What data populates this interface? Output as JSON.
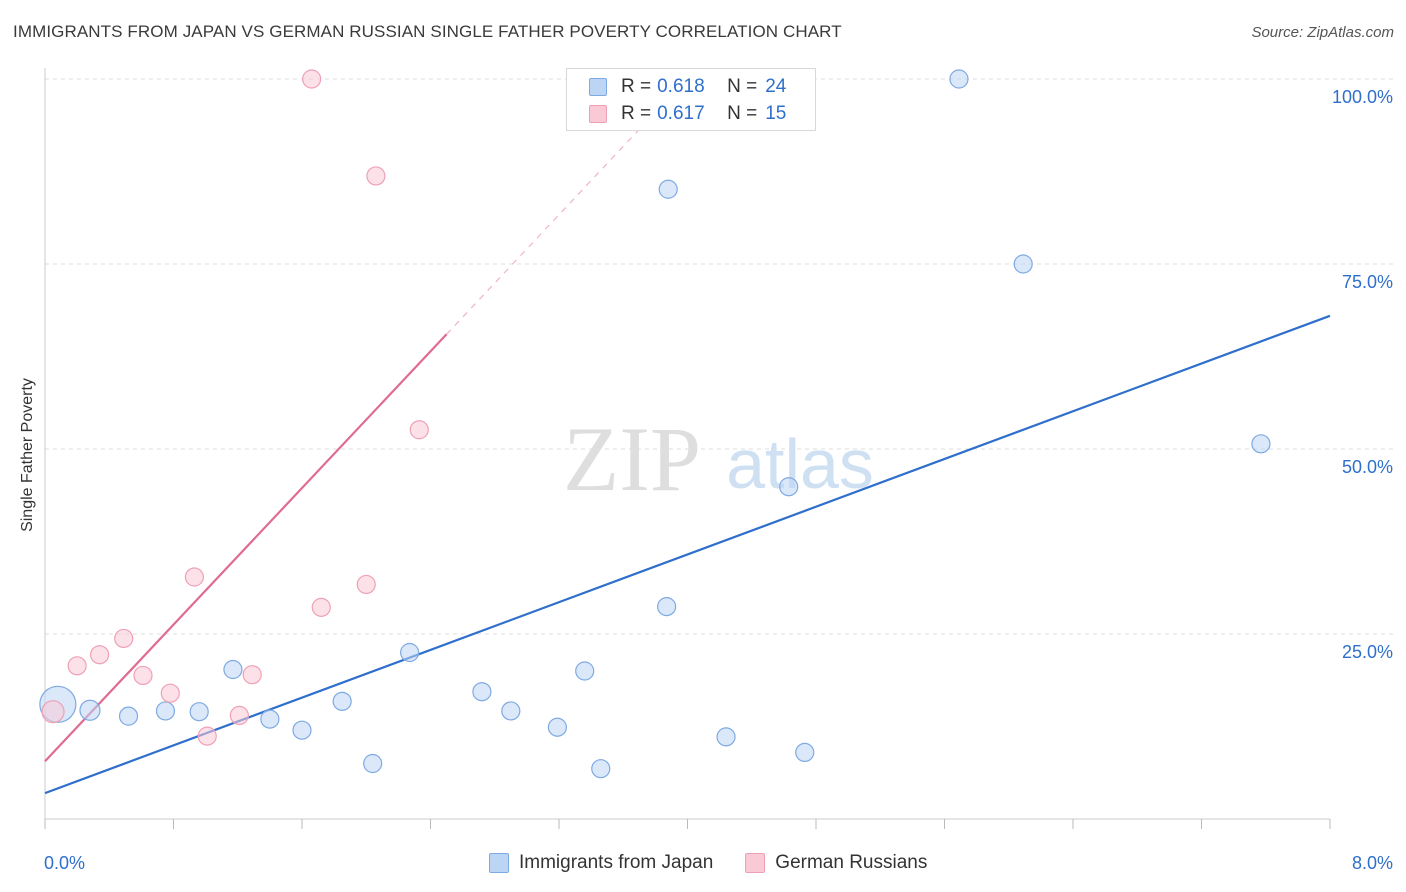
{
  "title": "IMMIGRANTS FROM JAPAN VS GERMAN RUSSIAN SINGLE FATHER POVERTY CORRELATION CHART",
  "source": "Source: ZipAtlas.com",
  "colors": {
    "blue": "#2f6fcc",
    "pink": "#e06b92",
    "blue_fill": "#bcd5f5",
    "pink_fill": "#f9c9d6"
  },
  "legend": {
    "rows": [
      {
        "r_label": "R =",
        "r_value": "0.618",
        "n_label": "N =",
        "n_value": "24"
      },
      {
        "r_label": "R =",
        "r_value": "0.617",
        "n_label": "N =",
        "n_value": "15"
      }
    ]
  },
  "chart_data": {
    "type": "scatter",
    "ylabel": "Single Father Poverty",
    "xlim": [
      0,
      8
    ],
    "ylim": [
      0,
      100
    ],
    "x_tick_labels": [
      "0.0%",
      "8.0%"
    ],
    "y_tick_labels": [
      "100.0%",
      "75.0%",
      "50.0%",
      "25.0%"
    ],
    "y_tick_values": [
      100,
      75,
      50,
      25
    ],
    "watermark": {
      "zip": "ZIP",
      "atlas": "atlas"
    },
    "series": [
      {
        "name": "Immigrants from Japan",
        "color": "blue",
        "points": [
          [
            0.08,
            15.5
          ],
          [
            0.28,
            14.7
          ],
          [
            0.52,
            13.9
          ],
          [
            0.75,
            14.6
          ],
          [
            0.96,
            14.5
          ],
          [
            1.17,
            20.2
          ],
          [
            1.4,
            13.5
          ],
          [
            1.6,
            12.0
          ],
          [
            1.85,
            15.9
          ],
          [
            2.04,
            7.5
          ],
          [
            2.27,
            22.5
          ],
          [
            2.72,
            17.2
          ],
          [
            2.9,
            14.6
          ],
          [
            3.19,
            12.4
          ],
          [
            3.36,
            20.0
          ],
          [
            3.46,
            6.8
          ],
          [
            3.87,
            28.7
          ],
          [
            3.88,
            85.1
          ],
          [
            4.24,
            11.1
          ],
          [
            4.63,
            44.9
          ],
          [
            4.73,
            9.0
          ],
          [
            5.69,
            100.0
          ],
          [
            6.09,
            75.0
          ],
          [
            7.57,
            50.7
          ]
        ],
        "sizes": [
          18,
          10,
          9,
          9,
          9,
          9,
          9,
          9,
          9,
          9,
          9,
          9,
          9,
          9,
          9,
          9,
          9,
          9,
          9,
          9,
          9,
          9,
          9,
          9
        ],
        "trend": {
          "x0": 0,
          "y0": 3.5,
          "x1": 8,
          "y1": 68.0
        }
      },
      {
        "name": "German Russians",
        "color": "pink",
        "points": [
          [
            0.05,
            14.5
          ],
          [
            0.2,
            20.7
          ],
          [
            0.34,
            22.2
          ],
          [
            0.49,
            24.4
          ],
          [
            0.61,
            19.4
          ],
          [
            0.78,
            17.0
          ],
          [
            0.93,
            32.7
          ],
          [
            1.01,
            11.2
          ],
          [
            1.21,
            14.0
          ],
          [
            1.29,
            19.5
          ],
          [
            1.66,
            100.0
          ],
          [
            1.72,
            28.6
          ],
          [
            2.0,
            31.7
          ],
          [
            2.06,
            86.9
          ],
          [
            2.33,
            52.6
          ]
        ],
        "sizes": [
          11,
          9,
          9,
          9,
          9,
          9,
          9,
          9,
          9,
          9,
          9,
          9,
          9,
          9,
          9
        ],
        "trend": {
          "x0": 0,
          "y0": 7.8,
          "x1": 2.5,
          "y1": 65.5,
          "x_dash_end": 3.7,
          "y_dash_end": 93.2
        }
      }
    ]
  }
}
